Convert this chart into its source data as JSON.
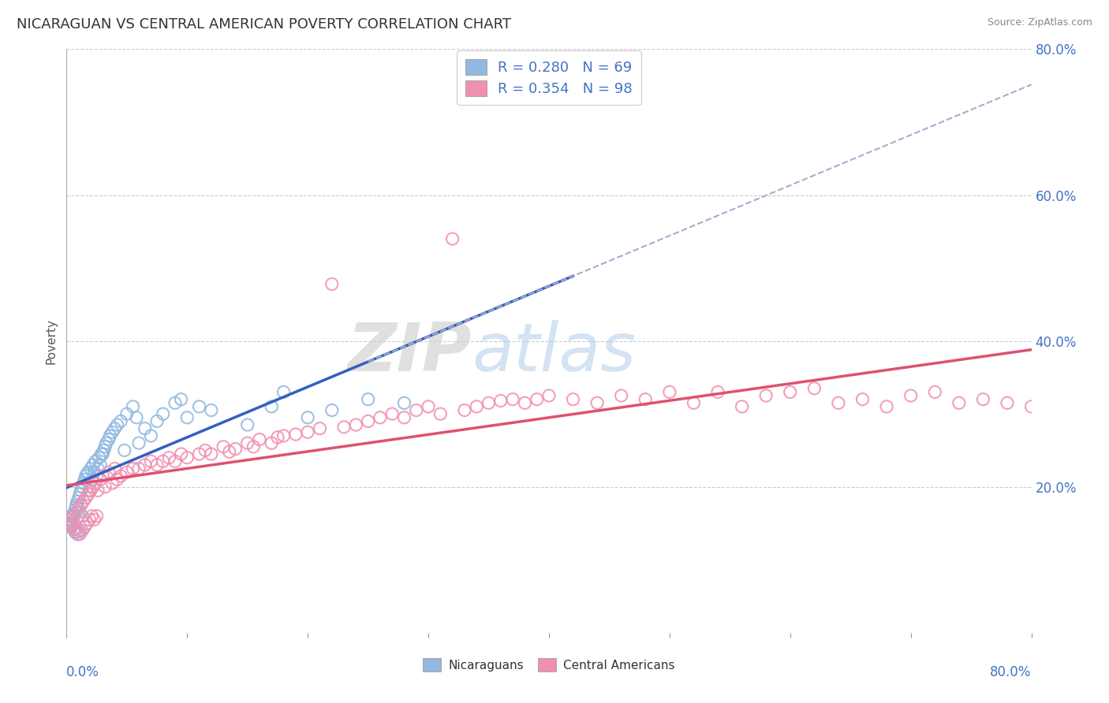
{
  "title": "NICARAGUAN VS CENTRAL AMERICAN POVERTY CORRELATION CHART",
  "source": "Source: ZipAtlas.com",
  "ylabel": "Poverty",
  "xlim": [
    0,
    0.8
  ],
  "ylim": [
    0,
    0.8
  ],
  "legend_blue_r": "R = 0.280",
  "legend_blue_n": "N = 69",
  "legend_pink_r": "R = 0.354",
  "legend_pink_n": "N = 98",
  "blue_color": "#90b8e0",
  "pink_color": "#f090b0",
  "trend_blue_color": "#3060c0",
  "trend_pink_color": "#e05070",
  "trend_gray_color": "#aaaacc",
  "background_color": "#ffffff",
  "grid_color": "#cccccc",
  "blue_x": [
    0.002,
    0.003,
    0.004,
    0.004,
    0.005,
    0.005,
    0.006,
    0.006,
    0.007,
    0.007,
    0.008,
    0.008,
    0.009,
    0.009,
    0.01,
    0.01,
    0.011,
    0.011,
    0.012,
    0.012,
    0.013,
    0.013,
    0.014,
    0.015,
    0.016,
    0.017,
    0.018,
    0.019,
    0.02,
    0.021,
    0.022,
    0.023,
    0.024,
    0.025,
    0.026,
    0.027,
    0.028,
    0.029,
    0.03,
    0.031,
    0.032,
    0.033,
    0.035,
    0.036,
    0.038,
    0.04,
    0.042,
    0.045,
    0.048,
    0.05,
    0.055,
    0.058,
    0.06,
    0.065,
    0.07,
    0.075,
    0.08,
    0.09,
    0.095,
    0.1,
    0.11,
    0.12,
    0.15,
    0.17,
    0.18,
    0.2,
    0.22,
    0.25,
    0.28
  ],
  "blue_y": [
    0.155,
    0.148,
    0.16,
    0.145,
    0.158,
    0.152,
    0.163,
    0.142,
    0.168,
    0.138,
    0.172,
    0.175,
    0.18,
    0.135,
    0.185,
    0.165,
    0.19,
    0.14,
    0.195,
    0.175,
    0.2,
    0.16,
    0.205,
    0.21,
    0.215,
    0.218,
    0.22,
    0.195,
    0.225,
    0.21,
    0.23,
    0.22,
    0.235,
    0.215,
    0.225,
    0.24,
    0.23,
    0.245,
    0.245,
    0.25,
    0.255,
    0.26,
    0.265,
    0.27,
    0.275,
    0.28,
    0.285,
    0.29,
    0.25,
    0.3,
    0.31,
    0.295,
    0.26,
    0.28,
    0.27,
    0.29,
    0.3,
    0.315,
    0.32,
    0.295,
    0.31,
    0.305,
    0.285,
    0.31,
    0.33,
    0.295,
    0.305,
    0.32,
    0.315
  ],
  "pink_x": [
    0.002,
    0.003,
    0.004,
    0.005,
    0.006,
    0.007,
    0.008,
    0.009,
    0.01,
    0.011,
    0.012,
    0.013,
    0.014,
    0.015,
    0.016,
    0.017,
    0.018,
    0.019,
    0.02,
    0.021,
    0.022,
    0.023,
    0.024,
    0.025,
    0.026,
    0.028,
    0.03,
    0.032,
    0.035,
    0.038,
    0.04,
    0.042,
    0.045,
    0.05,
    0.055,
    0.06,
    0.065,
    0.07,
    0.075,
    0.08,
    0.085,
    0.09,
    0.095,
    0.1,
    0.11,
    0.115,
    0.12,
    0.13,
    0.135,
    0.14,
    0.15,
    0.155,
    0.16,
    0.17,
    0.175,
    0.18,
    0.19,
    0.2,
    0.21,
    0.22,
    0.23,
    0.24,
    0.25,
    0.26,
    0.27,
    0.28,
    0.29,
    0.3,
    0.31,
    0.32,
    0.33,
    0.34,
    0.35,
    0.36,
    0.37,
    0.38,
    0.39,
    0.4,
    0.42,
    0.44,
    0.46,
    0.48,
    0.5,
    0.52,
    0.54,
    0.56,
    0.58,
    0.6,
    0.62,
    0.64,
    0.66,
    0.68,
    0.7,
    0.72,
    0.74,
    0.76,
    0.78,
    0.8
  ],
  "pink_y": [
    0.15,
    0.145,
    0.155,
    0.148,
    0.16,
    0.142,
    0.165,
    0.138,
    0.17,
    0.135,
    0.175,
    0.14,
    0.18,
    0.145,
    0.185,
    0.15,
    0.19,
    0.155,
    0.195,
    0.16,
    0.2,
    0.155,
    0.205,
    0.16,
    0.195,
    0.21,
    0.215,
    0.2,
    0.22,
    0.205,
    0.225,
    0.21,
    0.215,
    0.22,
    0.225,
    0.225,
    0.23,
    0.235,
    0.23,
    0.235,
    0.24,
    0.235,
    0.245,
    0.24,
    0.245,
    0.25,
    0.245,
    0.255,
    0.248,
    0.252,
    0.26,
    0.255,
    0.265,
    0.26,
    0.268,
    0.27,
    0.272,
    0.275,
    0.28,
    0.478,
    0.282,
    0.285,
    0.29,
    0.295,
    0.3,
    0.295,
    0.305,
    0.31,
    0.3,
    0.54,
    0.305,
    0.31,
    0.315,
    0.318,
    0.32,
    0.315,
    0.32,
    0.325,
    0.32,
    0.315,
    0.325,
    0.32,
    0.33,
    0.315,
    0.33,
    0.31,
    0.325,
    0.33,
    0.335,
    0.315,
    0.32,
    0.31,
    0.325,
    0.33,
    0.315,
    0.32,
    0.315,
    0.31
  ]
}
